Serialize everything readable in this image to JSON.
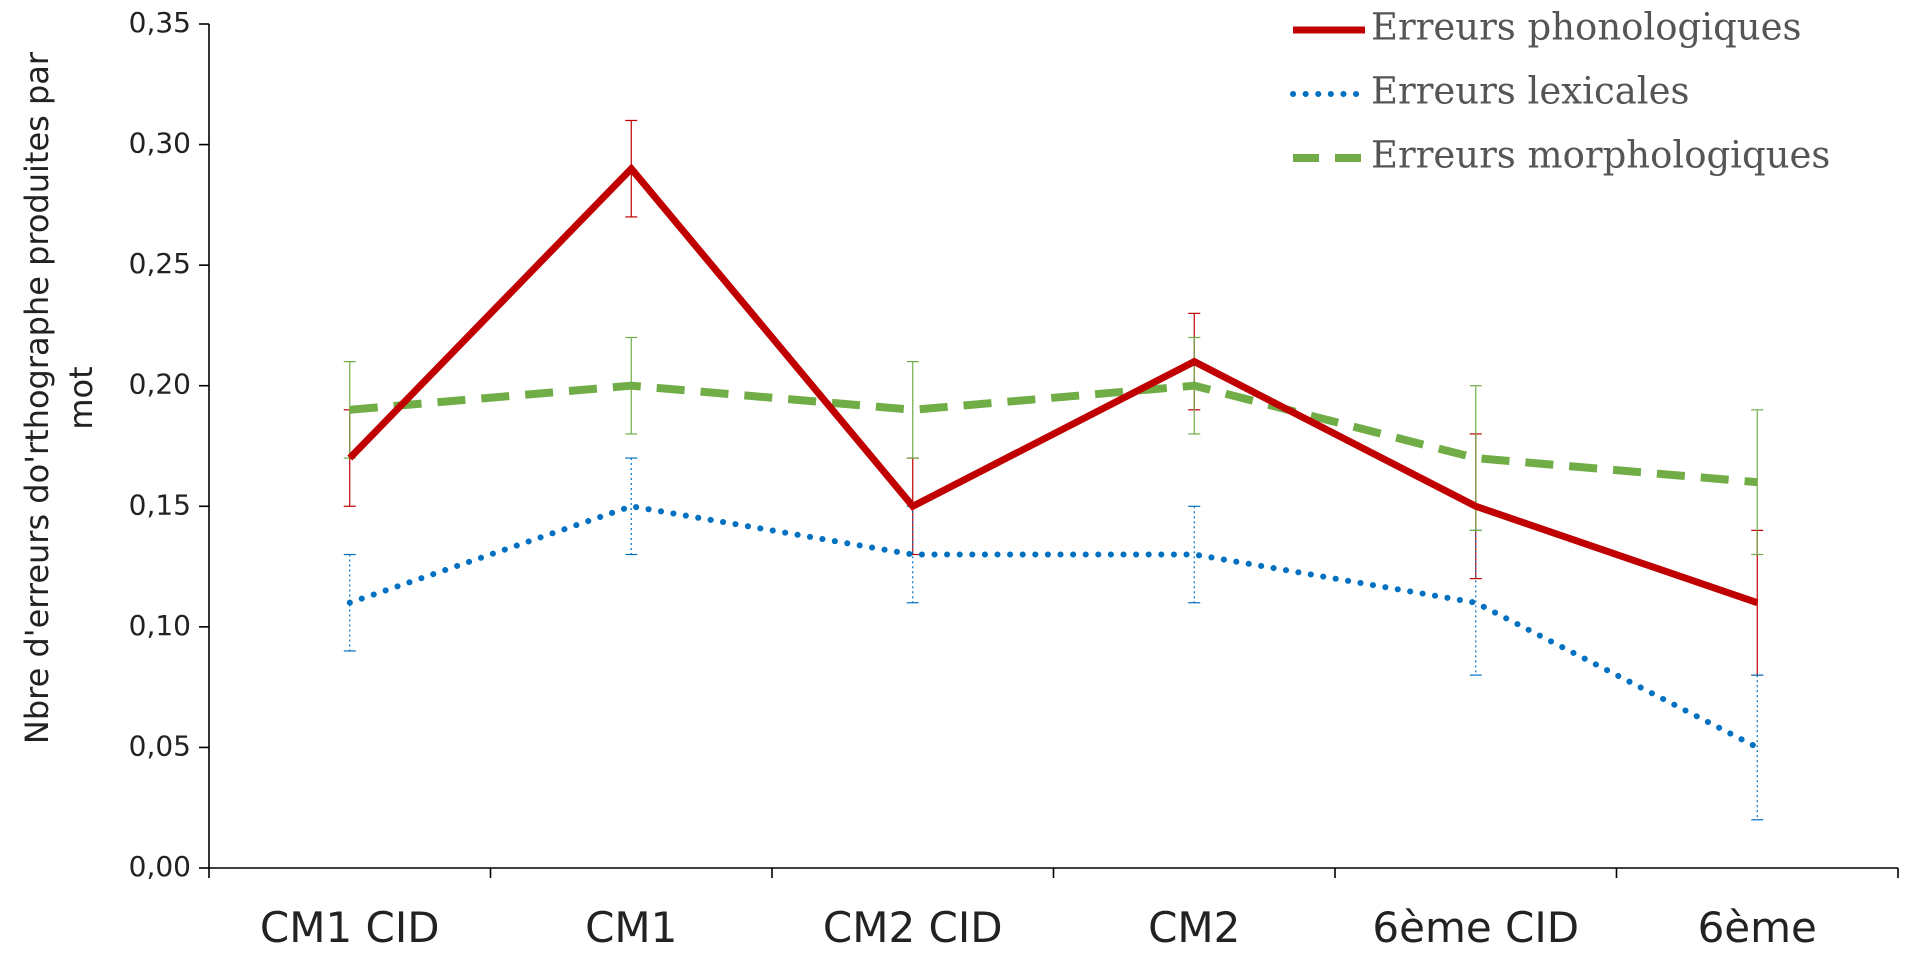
{
  "chart_data": {
    "type": "line",
    "title": "",
    "xlabel": "",
    "ylabel_line1": "Nbre d'erreurs do'rthographe produites par",
    "ylabel_line2": "mot",
    "categories": [
      "CM1 CID",
      "CM1",
      "CM2 CID",
      "CM2",
      "6ème CID",
      "6ème"
    ],
    "ylim": [
      0,
      0.35
    ],
    "y_ticks": [
      0,
      0.05,
      0.1,
      0.15,
      0.2,
      0.25,
      0.3,
      0.35
    ],
    "y_tick_labels": [
      "0,00",
      "0,05",
      "0,10",
      "0,15",
      "0,20",
      "0,25",
      "0,30",
      "0,35"
    ],
    "grid": false,
    "legend_position": "top-right",
    "series": [
      {
        "name": "Erreurs phonologiques",
        "color": "#C00000",
        "style": "solid",
        "values": [
          0.17,
          0.29,
          0.15,
          0.21,
          0.15,
          0.11
        ],
        "error": [
          0.02,
          0.02,
          0.02,
          0.02,
          0.03,
          0.03
        ]
      },
      {
        "name": "Erreurs lexicales",
        "color": "#0070C0",
        "style": "dotted",
        "values": [
          0.11,
          0.15,
          0.13,
          0.13,
          0.11,
          0.05
        ],
        "error": [
          0.02,
          0.02,
          0.02,
          0.02,
          0.03,
          0.03
        ]
      },
      {
        "name": "Erreurs morphologiques",
        "color": "#70AD47",
        "style": "dashed",
        "values": [
          0.19,
          0.2,
          0.19,
          0.2,
          0.17,
          0.16
        ],
        "error": [
          0.02,
          0.02,
          0.02,
          0.02,
          0.03,
          0.03
        ]
      }
    ]
  }
}
